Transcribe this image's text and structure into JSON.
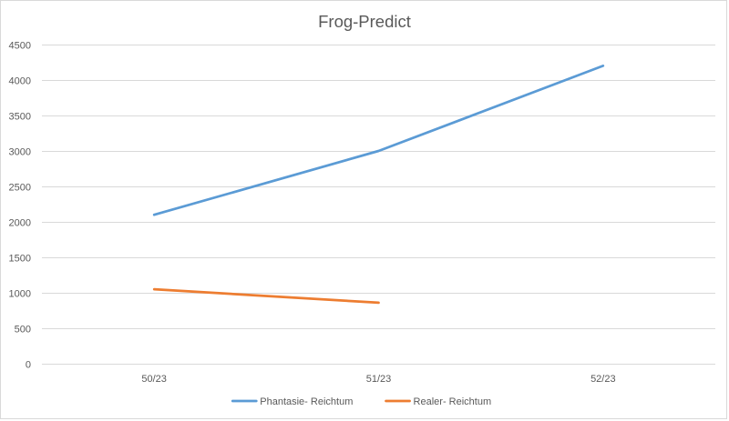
{
  "chart_data": {
    "type": "line",
    "title": "Frog-Predict",
    "xlabel": "",
    "ylabel": "",
    "categories": [
      "50/23",
      "51/23",
      "52/23"
    ],
    "y_ticks": [
      "0",
      "500",
      "1000",
      "1500",
      "2000",
      "2500",
      "3000",
      "3500",
      "4000",
      "4500"
    ],
    "ylim": [
      0,
      4500
    ],
    "grid": true,
    "legend_position": "bottom",
    "series": [
      {
        "name": "Phantasie- Reichtum",
        "color": "#5b9bd5",
        "values": [
          2100,
          3000,
          4200
        ]
      },
      {
        "name": "Realer- Reichtum",
        "color": "#ed7d31",
        "values": [
          1050,
          860,
          null
        ]
      }
    ]
  }
}
